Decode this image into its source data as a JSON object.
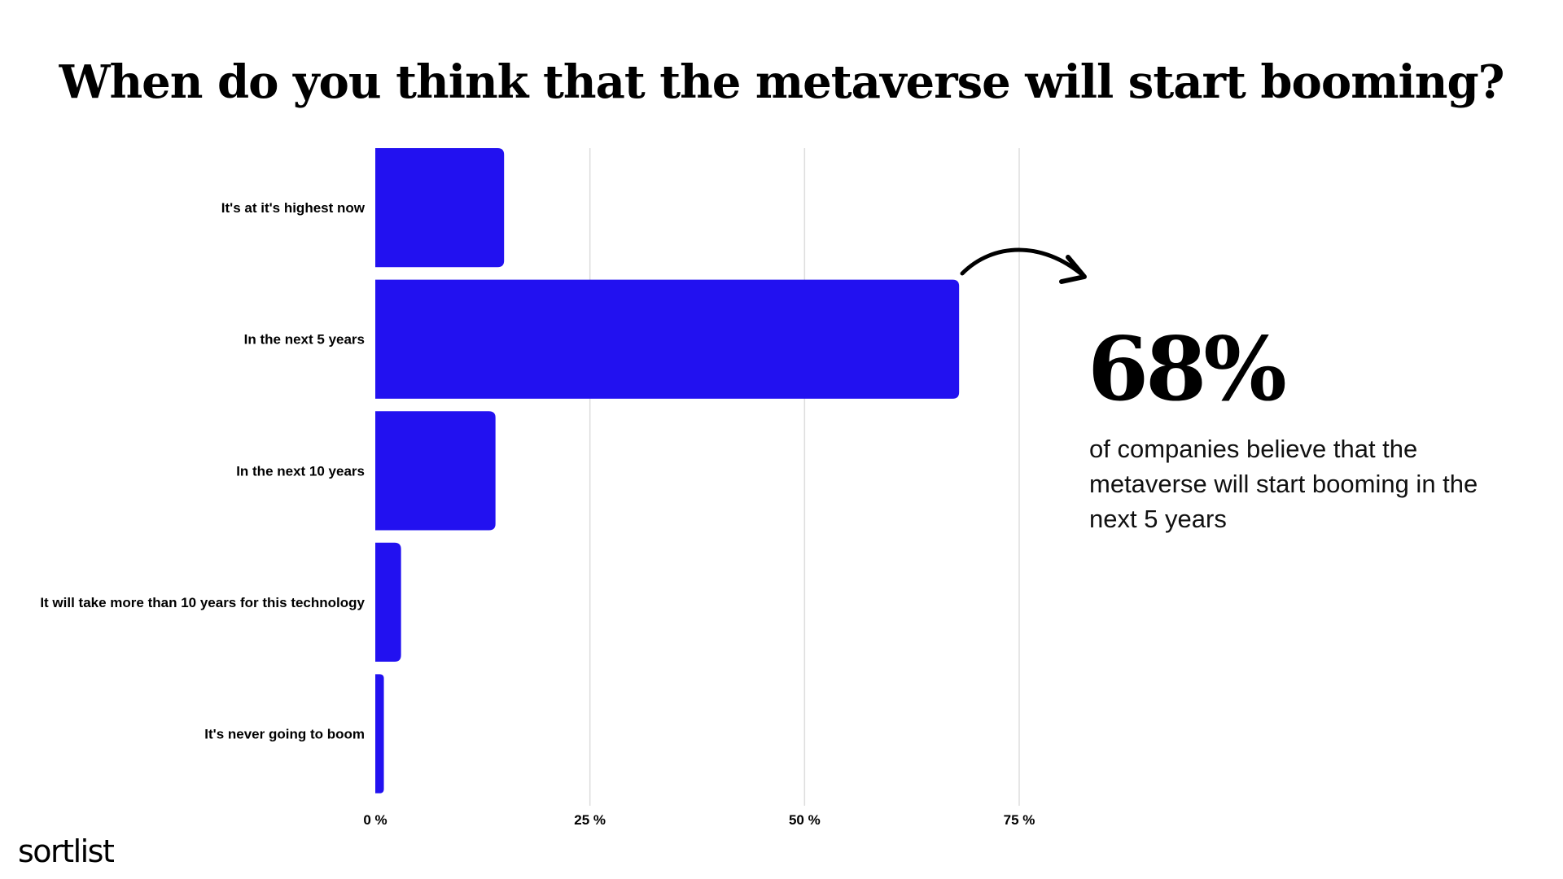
{
  "title": "When do you think that the metaverse will start booming?",
  "chart_data": {
    "type": "bar",
    "orientation": "horizontal",
    "categories": [
      "It's at it's highest now",
      "In the next 5 years",
      "In the next 10 years",
      "It will take more than 10 years for this technology",
      "It's never going to boom"
    ],
    "values": [
      15,
      68,
      14,
      3,
      1
    ],
    "xticks": [
      "0 %",
      "25 %",
      "50 %",
      "75 %"
    ],
    "xtick_values": [
      0,
      25,
      50,
      75
    ],
    "xlim": [
      0,
      75
    ],
    "grid": true,
    "bar_color": "#2211F0",
    "grid_color": "#dddddd"
  },
  "callout": {
    "value": "68%",
    "text": "of companies believe that the metaverse will start booming in the next 5 years"
  },
  "logo": "sortlist",
  "arrow_icon": "curved-arrow-icon"
}
